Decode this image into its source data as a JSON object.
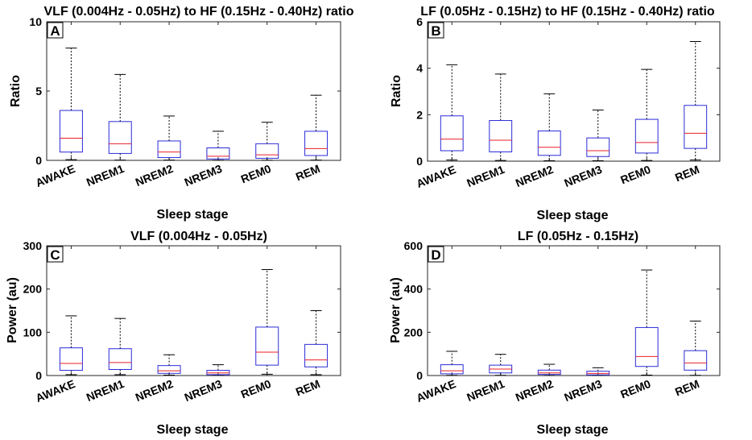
{
  "figure": {
    "xlabel": "Sleep stage"
  },
  "chart_data": [
    {
      "type": "boxplot",
      "panel": "A",
      "title": "VLF (0.004Hz - 0.05Hz) to HF (0.15Hz - 0.40Hz) ratio",
      "xlabel": "Sleep stage",
      "ylabel": "Ratio",
      "ylim": [
        0,
        10
      ],
      "yticks": [
        0,
        5,
        10
      ],
      "categories": [
        "AWAKE",
        "NREM1",
        "NREM2",
        "NREM3",
        "REM0",
        "REM"
      ],
      "boxes": [
        {
          "low": 0.05,
          "q1": 0.6,
          "median": 1.6,
          "q3": 3.6,
          "high": 8.1
        },
        {
          "low": 0.02,
          "q1": 0.5,
          "median": 1.2,
          "q3": 2.8,
          "high": 6.2
        },
        {
          "low": 0.02,
          "q1": 0.2,
          "median": 0.6,
          "q3": 1.4,
          "high": 3.2
        },
        {
          "low": 0.01,
          "q1": 0.1,
          "median": 0.3,
          "q3": 0.9,
          "high": 2.1
        },
        {
          "low": 0.01,
          "q1": 0.15,
          "median": 0.4,
          "q3": 1.2,
          "high": 2.75
        },
        {
          "low": 0.02,
          "q1": 0.35,
          "median": 0.85,
          "q3": 2.1,
          "high": 4.7
        }
      ]
    },
    {
      "type": "boxplot",
      "panel": "B",
      "title": "LF (0.05Hz - 0.15Hz) to HF (0.15Hz - 0.40Hz) ratio",
      "xlabel": "Sleep stage",
      "ylabel": "Ratio",
      "ylim": [
        0,
        6
      ],
      "yticks": [
        0,
        2,
        4,
        6
      ],
      "categories": [
        "AWAKE",
        "NREM1",
        "NREM2",
        "NREM3",
        "REM0",
        "REM"
      ],
      "boxes": [
        {
          "low": 0.05,
          "q1": 0.45,
          "median": 0.95,
          "q3": 1.95,
          "high": 4.15
        },
        {
          "low": 0.03,
          "q1": 0.4,
          "median": 0.9,
          "q3": 1.75,
          "high": 3.75
        },
        {
          "low": 0.02,
          "q1": 0.25,
          "median": 0.6,
          "q3": 1.3,
          "high": 2.9
        },
        {
          "low": 0.02,
          "q1": 0.2,
          "median": 0.45,
          "q3": 1.0,
          "high": 2.2
        },
        {
          "low": 0.03,
          "q1": 0.35,
          "median": 0.8,
          "q3": 1.8,
          "high": 3.95
        },
        {
          "low": 0.05,
          "q1": 0.55,
          "median": 1.2,
          "q3": 2.4,
          "high": 5.15
        }
      ]
    },
    {
      "type": "boxplot",
      "panel": "C",
      "title": "VLF (0.004Hz - 0.05Hz)",
      "xlabel": "Sleep stage",
      "ylabel": "Power (au)",
      "ylim": [
        0,
        300
      ],
      "yticks": [
        0,
        100,
        200,
        300
      ],
      "categories": [
        "AWAKE",
        "NREM1",
        "NREM2",
        "NREM3",
        "REM0",
        "REM"
      ],
      "boxes": [
        {
          "low": 2,
          "q1": 12,
          "median": 28,
          "q3": 64,
          "high": 138
        },
        {
          "low": 2,
          "q1": 14,
          "median": 30,
          "q3": 62,
          "high": 132
        },
        {
          "low": 1,
          "q1": 5,
          "median": 11,
          "q3": 23,
          "high": 48
        },
        {
          "low": 0.5,
          "q1": 2,
          "median": 6,
          "q3": 12,
          "high": 25
        },
        {
          "low": 3,
          "q1": 24,
          "median": 54,
          "q3": 112,
          "high": 245
        },
        {
          "low": 2,
          "q1": 20,
          "median": 36,
          "q3": 72,
          "high": 150
        }
      ]
    },
    {
      "type": "boxplot",
      "panel": "D",
      "title": "LF (0.05Hz - 0.15Hz)",
      "xlabel": "Sleep stage",
      "ylabel": "Power (au)",
      "ylim": [
        0,
        600
      ],
      "yticks": [
        0,
        200,
        400,
        600
      ],
      "categories": [
        "AWAKE",
        "NREM1",
        "NREM2",
        "NREM3",
        "REM0",
        "REM"
      ],
      "boxes": [
        {
          "low": 1,
          "q1": 8,
          "median": 22,
          "q3": 50,
          "high": 112
        },
        {
          "low": 1,
          "q1": 12,
          "median": 30,
          "q3": 48,
          "high": 98
        },
        {
          "low": 0.5,
          "q1": 5,
          "median": 12,
          "q3": 25,
          "high": 52
        },
        {
          "low": 0.5,
          "q1": 3,
          "median": 10,
          "q3": 20,
          "high": 36
        },
        {
          "low": 2,
          "q1": 42,
          "median": 88,
          "q3": 222,
          "high": 488
        },
        {
          "low": 1,
          "q1": 25,
          "median": 58,
          "q3": 115,
          "high": 252
        }
      ]
    }
  ]
}
